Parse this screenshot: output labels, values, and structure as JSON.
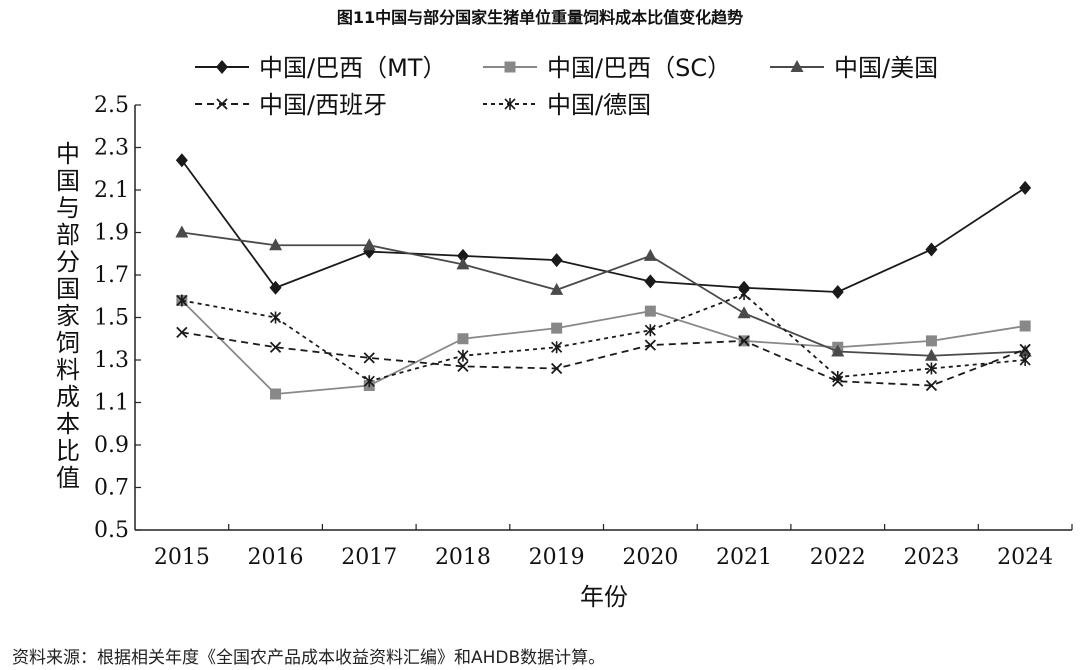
{
  "title": "图11中国与部分国家生猪单位重量饲料成本比值变化趋势",
  "source_note": "资料来源：根据相关年度《全国农产品成本收益资料汇编》和AHDB数据计算。",
  "chart_data": {
    "type": "line",
    "xlabel": "年份",
    "ylabel": "中国与部分国家饲料成本比值",
    "x": [
      "2015",
      "2016",
      "2017",
      "2018",
      "2019",
      "2020",
      "2021",
      "2022",
      "2023",
      "2024"
    ],
    "ylim": [
      0.5,
      2.5
    ],
    "yticks": [
      "0.5",
      "0.7",
      "0.9",
      "1.1",
      "1.3",
      "1.5",
      "1.7",
      "1.9",
      "2.1",
      "2.3",
      "2.5"
    ],
    "grid": false,
    "legend_position": "top",
    "series": [
      {
        "name": "中国/巴西（MT）",
        "values": [
          2.24,
          1.64,
          1.81,
          1.79,
          1.77,
          1.67,
          1.64,
          1.62,
          1.82,
          2.11
        ],
        "color": "#1a1a1a",
        "marker": "diamond",
        "dash": "solid"
      },
      {
        "name": "中国/巴西（SC）",
        "values": [
          1.58,
          1.14,
          1.18,
          1.4,
          1.45,
          1.53,
          1.39,
          1.36,
          1.39,
          1.46
        ],
        "color": "#888888",
        "marker": "square",
        "dash": "solid"
      },
      {
        "name": "中国/美国",
        "values": [
          1.9,
          1.84,
          1.84,
          1.75,
          1.63,
          1.79,
          1.52,
          1.34,
          1.32,
          1.34
        ],
        "color": "#4a4a4a",
        "marker": "triangle",
        "dash": "solid"
      },
      {
        "name": "中国/西班牙",
        "values": [
          1.43,
          1.36,
          1.31,
          1.27,
          1.26,
          1.37,
          1.39,
          1.2,
          1.18,
          1.35
        ],
        "color": "#1a1a1a",
        "marker": "x",
        "dash": "dashed"
      },
      {
        "name": "中国/德国",
        "values": [
          1.58,
          1.5,
          1.2,
          1.32,
          1.36,
          1.44,
          1.61,
          1.22,
          1.26,
          1.3
        ],
        "color": "#1a1a1a",
        "marker": "star",
        "dash": "dotted"
      }
    ]
  }
}
